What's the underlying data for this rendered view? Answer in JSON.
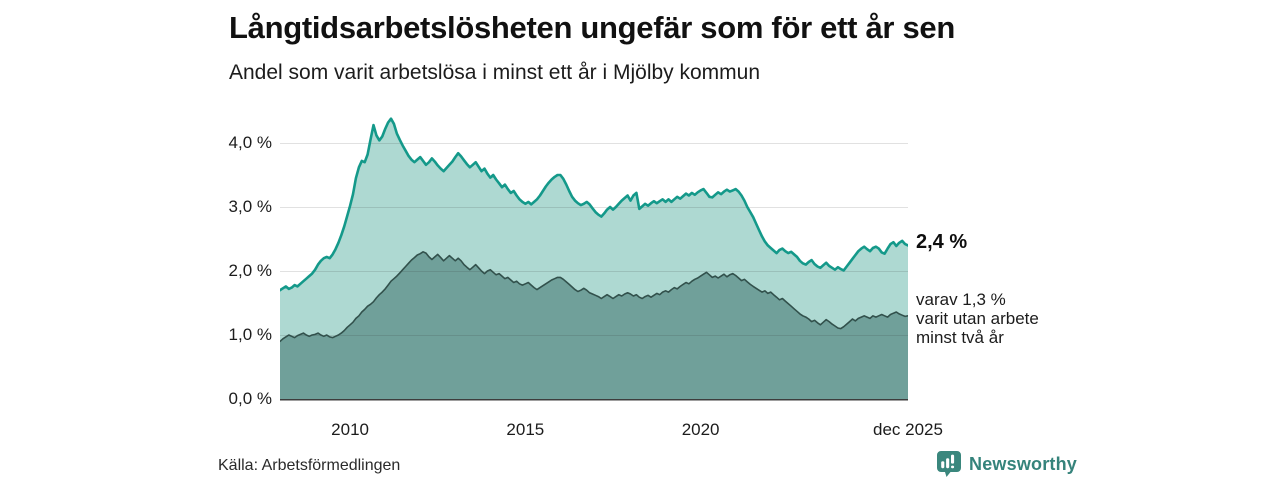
{
  "header": {
    "title": "Långtidsarbetslösheten ungefär som för ett år sen",
    "subtitle": "Andel som varit arbetslösa i minst ett år i Mjölby kommun"
  },
  "annotations": {
    "latest_total_label": "2,4 %",
    "secondary_lines": [
      "varav 1,3 %",
      "varit utan arbete",
      "minst två år"
    ]
  },
  "footer": {
    "source": "Källa: Arbetsförmedlingen",
    "brand": "Newsworthy",
    "brand_color": "#35837b"
  },
  "chart_data": {
    "type": "area",
    "title": "Långtidsarbetslösheten ungefär som för ett år sen",
    "subtitle": "Andel som varit arbetslösa i minst ett år i Mjölby kommun",
    "xlabel": "",
    "ylabel": "",
    "x_unit": "month",
    "x_start": "2008-01",
    "x_end": "2025-12",
    "ylim": [
      0,
      4.55
    ],
    "grid": true,
    "yticks": [
      {
        "value": 0,
        "label": "0,0 %"
      },
      {
        "value": 1,
        "label": "1,0 %"
      },
      {
        "value": 2,
        "label": "2,0 %"
      },
      {
        "value": 3,
        "label": "3,0 %"
      },
      {
        "value": 4,
        "label": "4,0 %"
      }
    ],
    "xticks": [
      {
        "index": 24,
        "label": "2010"
      },
      {
        "index": 84,
        "label": "2015"
      },
      {
        "index": 144,
        "label": "2020"
      },
      {
        "index": 215,
        "label": "dec 2025"
      }
    ],
    "series": [
      {
        "name": "Arbetslösa minst ett år",
        "latest": 2.4,
        "fill": "#aed9d2",
        "stroke": "#14998a",
        "stroke_width": 2.6,
        "values": [
          1.7,
          1.73,
          1.76,
          1.72,
          1.74,
          1.78,
          1.76,
          1.8,
          1.84,
          1.88,
          1.92,
          1.96,
          2.02,
          2.1,
          2.16,
          2.2,
          2.22,
          2.2,
          2.26,
          2.34,
          2.44,
          2.56,
          2.7,
          2.86,
          3.02,
          3.2,
          3.45,
          3.62,
          3.72,
          3.7,
          3.82,
          4.05,
          4.28,
          4.12,
          4.04,
          4.1,
          4.22,
          4.32,
          4.38,
          4.3,
          4.15,
          4.05,
          3.96,
          3.88,
          3.8,
          3.74,
          3.7,
          3.74,
          3.78,
          3.72,
          3.66,
          3.7,
          3.76,
          3.71,
          3.65,
          3.6,
          3.56,
          3.61,
          3.66,
          3.71,
          3.78,
          3.84,
          3.79,
          3.73,
          3.67,
          3.62,
          3.66,
          3.7,
          3.63,
          3.56,
          3.6,
          3.52,
          3.46,
          3.5,
          3.43,
          3.37,
          3.31,
          3.35,
          3.28,
          3.22,
          3.25,
          3.18,
          3.12,
          3.08,
          3.05,
          3.08,
          3.04,
          3.08,
          3.12,
          3.18,
          3.25,
          3.32,
          3.38,
          3.43,
          3.47,
          3.5,
          3.5,
          3.44,
          3.35,
          3.25,
          3.16,
          3.1,
          3.06,
          3.03,
          3.05,
          3.08,
          3.04,
          2.98,
          2.92,
          2.88,
          2.85,
          2.9,
          2.96,
          3.0,
          2.96,
          3.0,
          3.05,
          3.1,
          3.14,
          3.18,
          3.1,
          3.18,
          3.22,
          2.97,
          3.01,
          3.05,
          3.02,
          3.06,
          3.09,
          3.06,
          3.09,
          3.12,
          3.08,
          3.12,
          3.08,
          3.12,
          3.16,
          3.13,
          3.17,
          3.21,
          3.18,
          3.22,
          3.19,
          3.23,
          3.26,
          3.28,
          3.22,
          3.16,
          3.15,
          3.19,
          3.23,
          3.2,
          3.24,
          3.27,
          3.24,
          3.26,
          3.28,
          3.24,
          3.18,
          3.1,
          3.0,
          2.92,
          2.84,
          2.74,
          2.64,
          2.54,
          2.46,
          2.4,
          2.36,
          2.32,
          2.28,
          2.33,
          2.35,
          2.31,
          2.28,
          2.3,
          2.26,
          2.22,
          2.16,
          2.12,
          2.1,
          2.14,
          2.17,
          2.11,
          2.07,
          2.05,
          2.09,
          2.13,
          2.08,
          2.05,
          2.02,
          2.06,
          2.03,
          2.01,
          2.07,
          2.13,
          2.19,
          2.25,
          2.31,
          2.35,
          2.38,
          2.34,
          2.31,
          2.36,
          2.38,
          2.35,
          2.29,
          2.27,
          2.35,
          2.42,
          2.45,
          2.39,
          2.44,
          2.47,
          2.42,
          2.4
        ]
      },
      {
        "name": "varav utan arbete minst två år",
        "latest": 1.3,
        "fill": "#70a09a",
        "stroke": "#32514c",
        "stroke_width": 1.6,
        "values": [
          0.9,
          0.94,
          0.97,
          1.0,
          0.98,
          0.96,
          0.99,
          1.01,
          1.03,
          1.0,
          0.98,
          1.0,
          1.01,
          1.03,
          1.0,
          0.98,
          1.0,
          0.97,
          0.96,
          0.98,
          1.0,
          1.03,
          1.07,
          1.12,
          1.16,
          1.2,
          1.26,
          1.3,
          1.36,
          1.4,
          1.45,
          1.48,
          1.52,
          1.58,
          1.63,
          1.67,
          1.72,
          1.78,
          1.84,
          1.88,
          1.92,
          1.97,
          2.02,
          2.07,
          2.12,
          2.17,
          2.21,
          2.25,
          2.27,
          2.3,
          2.28,
          2.22,
          2.18,
          2.22,
          2.26,
          2.21,
          2.16,
          2.2,
          2.24,
          2.2,
          2.16,
          2.2,
          2.16,
          2.1,
          2.06,
          2.02,
          2.06,
          2.1,
          2.05,
          2.0,
          1.96,
          2.0,
          2.02,
          1.98,
          1.94,
          1.96,
          1.92,
          1.88,
          1.9,
          1.86,
          1.82,
          1.84,
          1.8,
          1.78,
          1.8,
          1.82,
          1.78,
          1.74,
          1.71,
          1.74,
          1.77,
          1.8,
          1.83,
          1.86,
          1.88,
          1.9,
          1.9,
          1.87,
          1.83,
          1.79,
          1.75,
          1.71,
          1.68,
          1.7,
          1.73,
          1.7,
          1.66,
          1.64,
          1.62,
          1.6,
          1.57,
          1.6,
          1.63,
          1.6,
          1.57,
          1.6,
          1.63,
          1.61,
          1.64,
          1.66,
          1.64,
          1.61,
          1.63,
          1.59,
          1.57,
          1.6,
          1.62,
          1.59,
          1.62,
          1.65,
          1.63,
          1.67,
          1.69,
          1.67,
          1.71,
          1.74,
          1.72,
          1.76,
          1.79,
          1.82,
          1.8,
          1.84,
          1.87,
          1.89,
          1.92,
          1.95,
          1.98,
          1.94,
          1.9,
          1.92,
          1.89,
          1.92,
          1.95,
          1.91,
          1.94,
          1.96,
          1.93,
          1.89,
          1.85,
          1.87,
          1.83,
          1.79,
          1.76,
          1.73,
          1.7,
          1.67,
          1.69,
          1.65,
          1.67,
          1.63,
          1.59,
          1.55,
          1.57,
          1.53,
          1.49,
          1.45,
          1.41,
          1.37,
          1.33,
          1.3,
          1.28,
          1.25,
          1.21,
          1.23,
          1.19,
          1.16,
          1.2,
          1.24,
          1.21,
          1.17,
          1.14,
          1.11,
          1.1,
          1.13,
          1.17,
          1.21,
          1.25,
          1.22,
          1.26,
          1.28,
          1.3,
          1.28,
          1.26,
          1.3,
          1.28,
          1.3,
          1.32,
          1.3,
          1.28,
          1.32,
          1.34,
          1.36,
          1.33,
          1.31,
          1.29,
          1.3
        ]
      }
    ],
    "legend": "annotations at right edge of plot",
    "plot_colors": {
      "gridline": "rgba(40,40,40,0.14)",
      "baseline": "#3d3d3d",
      "background": "#ffffff"
    }
  }
}
